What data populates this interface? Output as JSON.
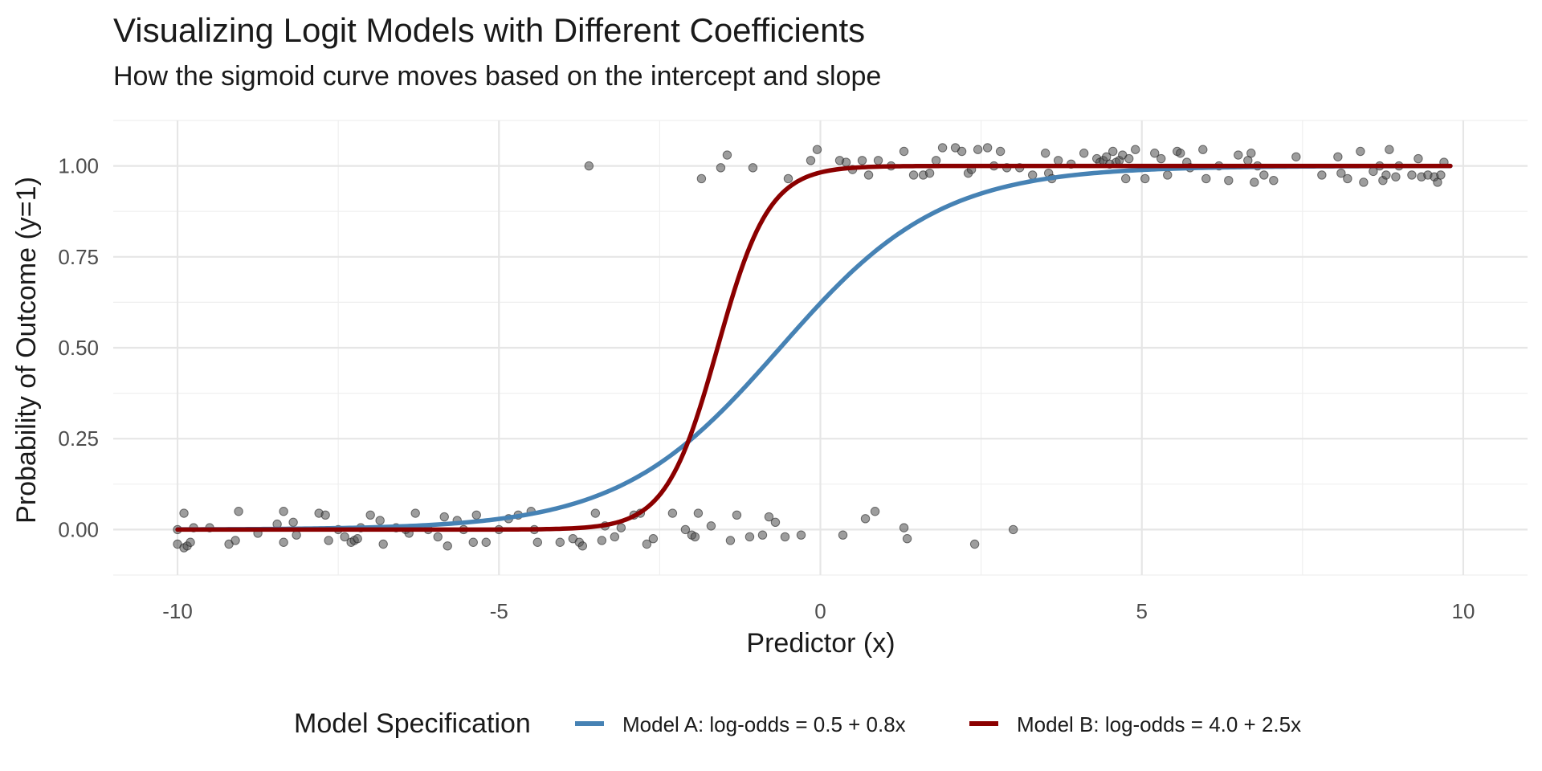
{
  "chart_data": {
    "type": "line",
    "title": "Visualizing Logit Models with Different Coefficients",
    "subtitle": "How the sigmoid curve moves based on the intercept and slope",
    "xlabel": "Predictor (x)",
    "ylabel": "Probability of Outcome (y=1)",
    "xlim": [
      -11,
      11
    ],
    "ylim": [
      -0.125,
      1.125
    ],
    "x_ticks": [
      -10,
      -5,
      0,
      5,
      10
    ],
    "x_tick_labels": [
      "-10",
      "-5",
      "0",
      "5",
      "10"
    ],
    "y_ticks": [
      0,
      0.25,
      0.5,
      0.75,
      1
    ],
    "y_tick_labels": [
      "0.00",
      "0.25",
      "0.50",
      "0.75",
      "1.00"
    ],
    "grid": true,
    "legend": {
      "title": "Model Specification",
      "placement": "bottom"
    },
    "series": [
      {
        "name": "Model A: log-odds = 0.5 + 0.8x",
        "color": "#4682b4",
        "intercept": 0.5,
        "slope": 0.8,
        "x_range": [
          -10,
          9.8
        ]
      },
      {
        "name": "Model B: log-odds = 4.0 + 2.5x",
        "color": "#8b0000",
        "intercept": 4.0,
        "slope": 2.5,
        "x_range": [
          -10,
          9.8
        ]
      }
    ],
    "observations": {
      "color": "#4d4d4d",
      "points": [
        [
          -10.0,
          -0.04
        ],
        [
          -10.0,
          0.0
        ],
        [
          -9.9,
          0.045
        ],
        [
          -9.9,
          -0.05
        ],
        [
          -9.85,
          -0.045
        ],
        [
          -9.8,
          -0.035
        ],
        [
          -9.75,
          0.005
        ],
        [
          -9.5,
          0.005
        ],
        [
          -9.2,
          -0.04
        ],
        [
          -9.1,
          -0.03
        ],
        [
          -9.05,
          0.05
        ],
        [
          -8.75,
          -0.01
        ],
        [
          -8.45,
          0.015
        ],
        [
          -8.35,
          0.05
        ],
        [
          -8.35,
          -0.035
        ],
        [
          -8.2,
          0.02
        ],
        [
          -8.15,
          -0.015
        ],
        [
          -7.8,
          0.045
        ],
        [
          -7.7,
          0.04
        ],
        [
          -7.65,
          -0.03
        ],
        [
          -7.5,
          0.0
        ],
        [
          -7.4,
          -0.02
        ],
        [
          -7.3,
          -0.035
        ],
        [
          -7.25,
          -0.03
        ],
        [
          -7.2,
          -0.025
        ],
        [
          -7.15,
          0.005
        ],
        [
          -7.0,
          0.04
        ],
        [
          -6.85,
          0.025
        ],
        [
          -6.8,
          -0.04
        ],
        [
          -6.6,
          0.005
        ],
        [
          -6.45,
          0.0
        ],
        [
          -6.4,
          -0.01
        ],
        [
          -6.3,
          0.045
        ],
        [
          -6.1,
          0.0
        ],
        [
          -5.95,
          -0.02
        ],
        [
          -5.85,
          0.035
        ],
        [
          -5.8,
          -0.045
        ],
        [
          -5.65,
          0.025
        ],
        [
          -5.55,
          0.0
        ],
        [
          -5.4,
          -0.035
        ],
        [
          -5.35,
          0.04
        ],
        [
          -5.2,
          -0.035
        ],
        [
          -5.0,
          0.0
        ],
        [
          -4.85,
          0.03
        ],
        [
          -4.7,
          0.04
        ],
        [
          -4.5,
          0.05
        ],
        [
          -4.45,
          0.0
        ],
        [
          -4.4,
          -0.035
        ],
        [
          -4.05,
          -0.035
        ],
        [
          -3.85,
          -0.025
        ],
        [
          -3.75,
          -0.035
        ],
        [
          -3.7,
          -0.045
        ],
        [
          -3.6,
          1.0
        ],
        [
          -3.5,
          0.045
        ],
        [
          -3.4,
          -0.03
        ],
        [
          -3.35,
          0.01
        ],
        [
          -3.2,
          -0.02
        ],
        [
          -3.1,
          0.005
        ],
        [
          -2.9,
          0.04
        ],
        [
          -2.8,
          0.045
        ],
        [
          -2.7,
          -0.04
        ],
        [
          -2.6,
          -0.025
        ],
        [
          -2.3,
          0.045
        ],
        [
          -2.1,
          0.0
        ],
        [
          -2.0,
          -0.015
        ],
        [
          -1.95,
          -0.02
        ],
        [
          -1.9,
          0.045
        ],
        [
          -1.85,
          0.965
        ],
        [
          -1.7,
          0.01
        ],
        [
          -1.55,
          0.995
        ],
        [
          -1.45,
          1.03
        ],
        [
          -1.4,
          -0.03
        ],
        [
          -1.3,
          0.04
        ],
        [
          -1.1,
          -0.02
        ],
        [
          -1.05,
          0.995
        ],
        [
          -0.9,
          -0.015
        ],
        [
          -0.8,
          0.035
        ],
        [
          -0.7,
          0.02
        ],
        [
          -0.55,
          -0.02
        ],
        [
          -0.5,
          0.965
        ],
        [
          -0.3,
          -0.015
        ],
        [
          -0.15,
          1.015
        ],
        [
          -0.05,
          1.045
        ],
        [
          0.3,
          1.015
        ],
        [
          0.35,
          -0.015
        ],
        [
          0.4,
          1.01
        ],
        [
          0.5,
          0.99
        ],
        [
          0.65,
          1.015
        ],
        [
          0.7,
          0.03
        ],
        [
          0.75,
          0.975
        ],
        [
          0.85,
          0.05
        ],
        [
          0.9,
          1.015
        ],
        [
          1.1,
          1.0
        ],
        [
          1.3,
          1.04
        ],
        [
          1.3,
          0.005
        ],
        [
          1.35,
          -0.025
        ],
        [
          1.45,
          0.975
        ],
        [
          1.6,
          0.975
        ],
        [
          1.7,
          0.98
        ],
        [
          1.8,
          1.015
        ],
        [
          1.9,
          1.05
        ],
        [
          2.1,
          1.05
        ],
        [
          2.2,
          1.04
        ],
        [
          2.3,
          0.98
        ],
        [
          2.35,
          0.99
        ],
        [
          2.4,
          -0.04
        ],
        [
          2.45,
          1.045
        ],
        [
          2.6,
          1.05
        ],
        [
          2.7,
          1.0
        ],
        [
          2.8,
          1.04
        ],
        [
          2.9,
          0.995
        ],
        [
          3.0,
          0.0
        ],
        [
          3.1,
          0.995
        ],
        [
          3.3,
          0.975
        ],
        [
          3.5,
          1.035
        ],
        [
          3.55,
          0.98
        ],
        [
          3.6,
          0.965
        ],
        [
          3.7,
          1.015
        ],
        [
          3.9,
          1.005
        ],
        [
          4.1,
          1.035
        ],
        [
          4.3,
          1.02
        ],
        [
          4.35,
          1.01
        ],
        [
          4.4,
          1.015
        ],
        [
          4.45,
          1.025
        ],
        [
          4.5,
          1.005
        ],
        [
          4.55,
          1.04
        ],
        [
          4.6,
          1.01
        ],
        [
          4.65,
          1.015
        ],
        [
          4.7,
          1.03
        ],
        [
          4.75,
          0.965
        ],
        [
          4.8,
          1.02
        ],
        [
          4.9,
          1.045
        ],
        [
          5.05,
          0.965
        ],
        [
          5.2,
          1.035
        ],
        [
          5.3,
          1.02
        ],
        [
          5.4,
          0.975
        ],
        [
          5.55,
          1.04
        ],
        [
          5.6,
          1.035
        ],
        [
          5.7,
          1.01
        ],
        [
          5.75,
          0.995
        ],
        [
          5.95,
          1.045
        ],
        [
          6.0,
          0.965
        ],
        [
          6.2,
          1.0
        ],
        [
          6.35,
          0.96
        ],
        [
          6.5,
          1.03
        ],
        [
          6.65,
          1.015
        ],
        [
          6.7,
          1.035
        ],
        [
          6.75,
          0.955
        ],
        [
          6.8,
          1.0
        ],
        [
          6.9,
          0.975
        ],
        [
          7.05,
          0.96
        ],
        [
          7.4,
          1.025
        ],
        [
          7.8,
          0.975
        ],
        [
          8.05,
          1.025
        ],
        [
          8.1,
          0.98
        ],
        [
          8.2,
          0.965
        ],
        [
          8.4,
          1.04
        ],
        [
          8.45,
          0.955
        ],
        [
          8.6,
          0.985
        ],
        [
          8.7,
          1.0
        ],
        [
          8.75,
          0.96
        ],
        [
          8.8,
          0.975
        ],
        [
          8.85,
          1.045
        ],
        [
          8.95,
          0.97
        ],
        [
          9.0,
          1.0
        ],
        [
          9.2,
          0.975
        ],
        [
          9.3,
          1.02
        ],
        [
          9.35,
          0.97
        ],
        [
          9.45,
          0.975
        ],
        [
          9.55,
          0.97
        ],
        [
          9.6,
          0.955
        ],
        [
          9.65,
          0.975
        ],
        [
          9.7,
          1.01
        ]
      ]
    }
  }
}
